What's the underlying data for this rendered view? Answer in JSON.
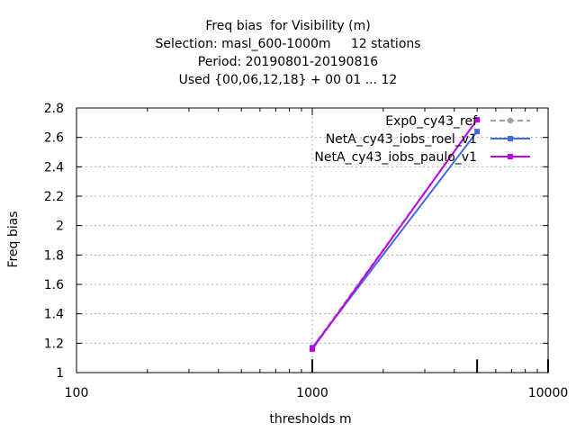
{
  "chart_data": {
    "type": "line",
    "title_lines": [
      "Freq bias  for Visibility (m)",
      "Selection: masl_600-1000m     12 stations",
      "Period: 20190801-20190816",
      "Used {00,06,12,18} + 00 01 ... 12"
    ],
    "xlabel": "thresholds m",
    "ylabel": "Freq bias",
    "x_scale": "log",
    "xlim": [
      100,
      10000
    ],
    "ylim": [
      1.0,
      2.8
    ],
    "x_ticks": [
      100,
      1000,
      10000
    ],
    "x_tick_labels": [
      "100",
      "1000",
      "10000"
    ],
    "y_ticks": [
      1.0,
      1.2,
      1.4,
      1.6,
      1.8,
      2.0,
      2.2,
      2.4,
      2.6,
      2.8
    ],
    "y_tick_labels": [
      "1",
      "1.2",
      "1.4",
      "1.6",
      "1.8",
      "2",
      "2.2",
      "2.4",
      "2.6",
      "2.8"
    ],
    "grid": true,
    "legend_position": "top-right",
    "series": [
      {
        "name": "Exp0_cy43_ref",
        "color": "#a0a0a0",
        "dash": "dashed",
        "marker": "circle",
        "x": [
          1000,
          5000
        ],
        "y": [
          1.17,
          2.72
        ]
      },
      {
        "name": "NetA_cy43_iobs_roel_v1",
        "color": "#4169e1",
        "dash": "solid",
        "marker": "square",
        "x": [
          1000,
          5000
        ],
        "y": [
          1.17,
          2.64
        ]
      },
      {
        "name": "NetA_cy43_iobs_paulo_v1",
        "color": "#c000e0",
        "dash": "solid",
        "marker": "square",
        "x": [
          1000,
          5000
        ],
        "y": [
          1.16,
          2.72
        ]
      }
    ],
    "count_bars": {
      "x": [
        1000,
        5000,
        10000
      ],
      "y": [
        1.09,
        1.09,
        1.09
      ]
    }
  }
}
